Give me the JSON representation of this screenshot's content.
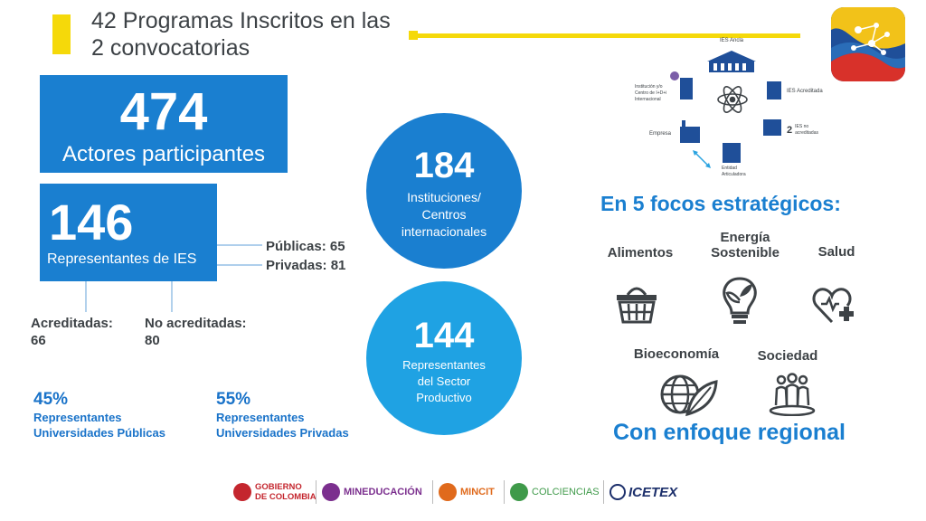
{
  "header": {
    "title": "42 Programas Inscritos en las 2 convocatorias"
  },
  "actores": {
    "number": "474",
    "label": "Actores participantes"
  },
  "ies": {
    "number": "146",
    "label": "Representantes de IES",
    "publicas": "Públicas: 65",
    "privadas": "Privadas: 81",
    "acreditadas_label": "Acreditadas:",
    "acreditadas_value": "66",
    "no_acreditadas_label": "No acreditadas:",
    "no_acreditadas_value": "80"
  },
  "pct_publicas": {
    "pct": "45%",
    "line1": "Representantes",
    "line2": "Universidades Públicas"
  },
  "pct_privadas": {
    "pct": "55%",
    "line1": "Representantes",
    "line2": "Universidades Privadas"
  },
  "instituciones": {
    "number": "184",
    "line1": "Instituciones/",
    "line2": "Centros",
    "line3": "internacionales"
  },
  "productivo": {
    "number": "144",
    "line1": "Representantes",
    "line2": "del Sector",
    "line3": "Productivo"
  },
  "diagram": {
    "ies_ancla": "IES Ancla",
    "institucion_line1": "Institución y/o",
    "institucion_line2": "Centro de I+D+i",
    "institucion_line3": "Internacional",
    "ies_acreditada": "IES Acreditada",
    "empresa": "Empresa",
    "ies_no_num": "2",
    "ies_no_line1": "IES no",
    "ies_no_line2": "acreditadas",
    "entidad_line1": "Entidad",
    "entidad_line2": "Articuladora"
  },
  "focos": {
    "title": "En 5 focos estratégicos:",
    "alimentos": "Alimentos",
    "energia_line1": "Energía",
    "energia_line2": "Sostenible",
    "salud": "Salud",
    "bioeconomia": "Bioeconomía",
    "sociedad": "Sociedad"
  },
  "enfoque": "Con enfoque regional",
  "footer": {
    "gobierno_line1": "GOBIERNO",
    "gobierno_line2": "DE COLOMBIA",
    "mineducacion": "MINEDUCACIÓN",
    "mincit": "MINCIT",
    "colciencias": "COLCIENCIAS",
    "icetex": "ICETEX"
  },
  "colors": {
    "primary_blue": "#1a7fd0",
    "light_blue": "#1fa2e3",
    "yellow": "#f5d90a",
    "dark_text": "#3d4246"
  },
  "icons": [
    "basket-icon",
    "lightbulb-leaf-icon",
    "heart-cross-icon",
    "globe-leaf-icon",
    "people-group-icon",
    "atom-icon",
    "building-icon"
  ]
}
